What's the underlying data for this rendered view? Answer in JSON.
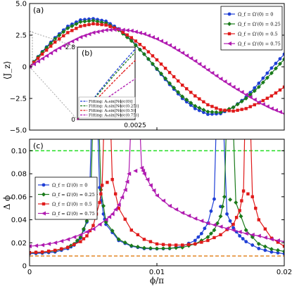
{
  "chart_data": [
    {
      "type": "line",
      "panel_label": "(a)",
      "ylabel": "⟨J_z⟩",
      "xlim": [
        0,
        0.02
      ],
      "ylim": [
        -5.0,
        5.0
      ],
      "yticks": [
        "5.0",
        "2.5",
        "0",
        "−2.5",
        "−5.0"
      ],
      "ytick_values": [
        5,
        2.5,
        0,
        -2.5,
        -5
      ],
      "legend_position": "top-right",
      "series": [
        {
          "name": "Ω_f = Ω′(0) = 0",
          "color": "#1f3fd6",
          "marker": "circle",
          "x": [
            0,
            0.001,
            0.002,
            0.003,
            0.004,
            0.005,
            0.006,
            0.007,
            0.008,
            0.009,
            0.01,
            0.011,
            0.012,
            0.013,
            0.014,
            0.015,
            0.016,
            0.017,
            0.018,
            0.019,
            0.02
          ],
          "y": [
            0,
            1.2,
            2.3,
            3.2,
            3.7,
            3.8,
            3.6,
            3.0,
            2.1,
            1.0,
            -0.2,
            -1.4,
            -2.5,
            -3.3,
            -3.75,
            -3.7,
            -3.2,
            -2.4,
            -1.3,
            -0.1,
            1.0
          ]
        },
        {
          "name": "Ω_f = Ω′(0) = 0.25",
          "color": "#1a7a1a",
          "marker": "diamond",
          "x": [
            0,
            0.001,
            0.002,
            0.003,
            0.004,
            0.005,
            0.006,
            0.007,
            0.008,
            0.009,
            0.01,
            0.011,
            0.012,
            0.013,
            0.014,
            0.015,
            0.016,
            0.017,
            0.018,
            0.019,
            0.02
          ],
          "y": [
            0,
            1.15,
            2.2,
            3.05,
            3.55,
            3.65,
            3.45,
            2.9,
            2.05,
            1.0,
            -0.15,
            -1.3,
            -2.35,
            -3.1,
            -3.55,
            -3.6,
            -3.2,
            -2.5,
            -1.6,
            -0.5,
            0.6
          ]
        },
        {
          "name": "Ω_f = Ω′(0) = 0.5",
          "color": "#e01a1a",
          "marker": "square",
          "x": [
            0,
            0.001,
            0.002,
            0.003,
            0.004,
            0.005,
            0.006,
            0.007,
            0.008,
            0.009,
            0.01,
            0.011,
            0.012,
            0.013,
            0.014,
            0.015,
            0.016,
            0.017,
            0.018,
            0.019,
            0.02
          ],
          "y": [
            0,
            1.0,
            1.95,
            2.7,
            3.2,
            3.4,
            3.3,
            2.95,
            2.3,
            1.5,
            0.55,
            -0.45,
            -1.45,
            -2.3,
            -3.0,
            -3.4,
            -3.5,
            -3.3,
            -2.85,
            -2.3,
            -1.6
          ]
        },
        {
          "name": "Ω_f = Ω′(0) = 0.75",
          "color": "#b01ab0",
          "marker": "triangle-left",
          "x": [
            0,
            0.001,
            0.002,
            0.003,
            0.004,
            0.005,
            0.006,
            0.007,
            0.008,
            0.009,
            0.01,
            0.011,
            0.012,
            0.013,
            0.014,
            0.015,
            0.016,
            0.017,
            0.018,
            0.019,
            0.02
          ],
          "y": [
            0,
            0.65,
            1.3,
            1.85,
            2.35,
            2.7,
            2.9,
            2.95,
            2.85,
            2.6,
            2.2,
            1.7,
            1.1,
            0.45,
            -0.25,
            -0.95,
            -1.6,
            -2.2,
            -2.8,
            -3.3,
            -3.7
          ]
        }
      ]
    },
    {
      "type": "line",
      "panel_label": "(b)",
      "xlim": [
        0,
        0.0025
      ],
      "ylim": [
        0,
        2.8
      ],
      "xticks": [
        "0",
        "0.0025"
      ],
      "yticks": [
        "0",
        "2.8"
      ],
      "legend": [
        {
          "label": "Fitting: A₁sin[Nϕ/c(0)]",
          "color": "#1f3fd6"
        },
        {
          "label": "Fitting: A₂sin[Nϕ/c(0.25)]",
          "color": "#1a7a1a"
        },
        {
          "label": "Fitting: A₃sin[Nϕ/c(0.5)]",
          "color": "#e01a1a"
        },
        {
          "label": "Fitting: A₄sin[Nϕ/c(0.75)]",
          "color": "#b01ab0"
        }
      ],
      "series": [
        {
          "color": "#1f3fd6",
          "x": [
            0,
            0.0005,
            0.001,
            0.0015,
            0.002,
            0.0025
          ],
          "y": [
            0,
            0.58,
            1.15,
            1.7,
            2.22,
            2.72
          ]
        },
        {
          "color": "#1a7a1a",
          "x": [
            0,
            0.0005,
            0.001,
            0.0015,
            0.002,
            0.0025
          ],
          "y": [
            0,
            0.55,
            1.09,
            1.62,
            2.12,
            2.6
          ]
        },
        {
          "color": "#e01a1a",
          "x": [
            0,
            0.0005,
            0.001,
            0.0015,
            0.002,
            0.0025
          ],
          "y": [
            0,
            0.47,
            0.94,
            1.4,
            1.85,
            2.28
          ]
        },
        {
          "color": "#b01ab0",
          "x": [
            0,
            0.0005,
            0.001,
            0.0015,
            0.002,
            0.0025
          ],
          "y": [
            0,
            0.32,
            0.64,
            0.96,
            1.27,
            1.57
          ]
        }
      ]
    },
    {
      "type": "line",
      "panel_label": "(c)",
      "xlabel": "ϕ/π",
      "ylabel": "Δ ϕ",
      "xlim": [
        0,
        0.02
      ],
      "ylim": [
        0,
        0.11
      ],
      "xticks": [
        "0",
        "0.01",
        "0.02"
      ],
      "xtick_values": [
        0,
        0.01,
        0.02
      ],
      "yticks": [
        "0.10",
        "0.08",
        "0.06",
        "0.04",
        "0.02",
        "0"
      ],
      "ytick_values": [
        0.1,
        0.08,
        0.06,
        0.04,
        0.02,
        0
      ],
      "legend_position": "center-left",
      "reference_lines": [
        {
          "y": 0.1,
          "color": "#22dd22",
          "style": "dashed"
        },
        {
          "y": 0.0085,
          "color": "#e07a10",
          "style": "dashed"
        }
      ],
      "series": [
        {
          "name": "Ω_f = Ω′(0) = 0",
          "color": "#1f3fd6",
          "marker": "circle",
          "poles": [
            0.0051,
            0.0149
          ],
          "x": [
            0,
            0.001,
            0.002,
            0.003,
            0.0035,
            0.004,
            0.0045,
            0.0047,
            0.0055,
            0.0058,
            0.006,
            0.007,
            0.008,
            0.009,
            0.01,
            0.011,
            0.012,
            0.013,
            0.0135,
            0.014,
            0.0145,
            0.0155,
            0.016,
            0.0165,
            0.017,
            0.018,
            0.019,
            0.02
          ],
          "y": [
            0.0105,
            0.011,
            0.012,
            0.015,
            0.018,
            0.024,
            0.038,
            0.055,
            0.068,
            0.045,
            0.036,
            0.022,
            0.017,
            0.015,
            0.0148,
            0.015,
            0.017,
            0.022,
            0.028,
            0.037,
            0.058,
            0.045,
            0.033,
            0.026,
            0.021,
            0.015,
            0.012,
            0.0105
          ]
        },
        {
          "name": "Ω_f = Ω′(0) = 0.25",
          "color": "#1a7a1a",
          "marker": "diamond",
          "poles": [
            0.0052,
            0.0157
          ],
          "x": [
            0,
            0.001,
            0.002,
            0.003,
            0.0035,
            0.004,
            0.0045,
            0.0048,
            0.0056,
            0.006,
            0.007,
            0.008,
            0.009,
            0.01,
            0.011,
            0.012,
            0.013,
            0.014,
            0.0145,
            0.015,
            0.0153,
            0.0162,
            0.017,
            0.018,
            0.019,
            0.02
          ],
          "y": [
            0.0112,
            0.0118,
            0.013,
            0.016,
            0.019,
            0.025,
            0.039,
            0.058,
            0.066,
            0.038,
            0.023,
            0.0175,
            0.0155,
            0.015,
            0.0152,
            0.016,
            0.019,
            0.025,
            0.031,
            0.043,
            0.06,
            0.055,
            0.031,
            0.019,
            0.0145,
            0.0125
          ]
        },
        {
          "name": "Ω_f = Ω′(0) = 0.5",
          "color": "#e01a1a",
          "marker": "square",
          "poles": [
            0.0061,
            0.0171
          ],
          "x": [
            0,
            0.001,
            0.002,
            0.003,
            0.004,
            0.0045,
            0.005,
            0.0055,
            0.0057,
            0.0065,
            0.007,
            0.008,
            0.009,
            0.01,
            0.011,
            0.012,
            0.013,
            0.014,
            0.015,
            0.016,
            0.0165,
            0.0168,
            0.0175,
            0.018,
            0.019,
            0.02
          ],
          "y": [
            0.0115,
            0.012,
            0.0135,
            0.016,
            0.021,
            0.026,
            0.035,
            0.055,
            0.07,
            0.075,
            0.05,
            0.031,
            0.023,
            0.019,
            0.018,
            0.018,
            0.019,
            0.022,
            0.027,
            0.036,
            0.048,
            0.065,
            0.06,
            0.04,
            0.024,
            0.017
          ]
        },
        {
          "name": "Ω_f = Ω′(0) = 0.75",
          "color": "#b01ab0",
          "marker": "triangle-left",
          "poles": [
            0.0083
          ],
          "x": [
            0,
            0.001,
            0.002,
            0.003,
            0.004,
            0.005,
            0.006,
            0.0065,
            0.007,
            0.0075,
            0.0078,
            0.0088,
            0.009,
            0.0095,
            0.01,
            0.011,
            0.012,
            0.013,
            0.014,
            0.015,
            0.016,
            0.017,
            0.018,
            0.019,
            0.02
          ],
          "y": [
            0.017,
            0.018,
            0.02,
            0.023,
            0.027,
            0.032,
            0.04,
            0.045,
            0.053,
            0.066,
            0.08,
            0.085,
            0.08,
            0.07,
            0.061,
            0.052,
            0.046,
            0.041,
            0.037,
            0.034,
            0.031,
            0.028,
            0.026,
            0.023,
            0.021
          ]
        }
      ]
    }
  ]
}
